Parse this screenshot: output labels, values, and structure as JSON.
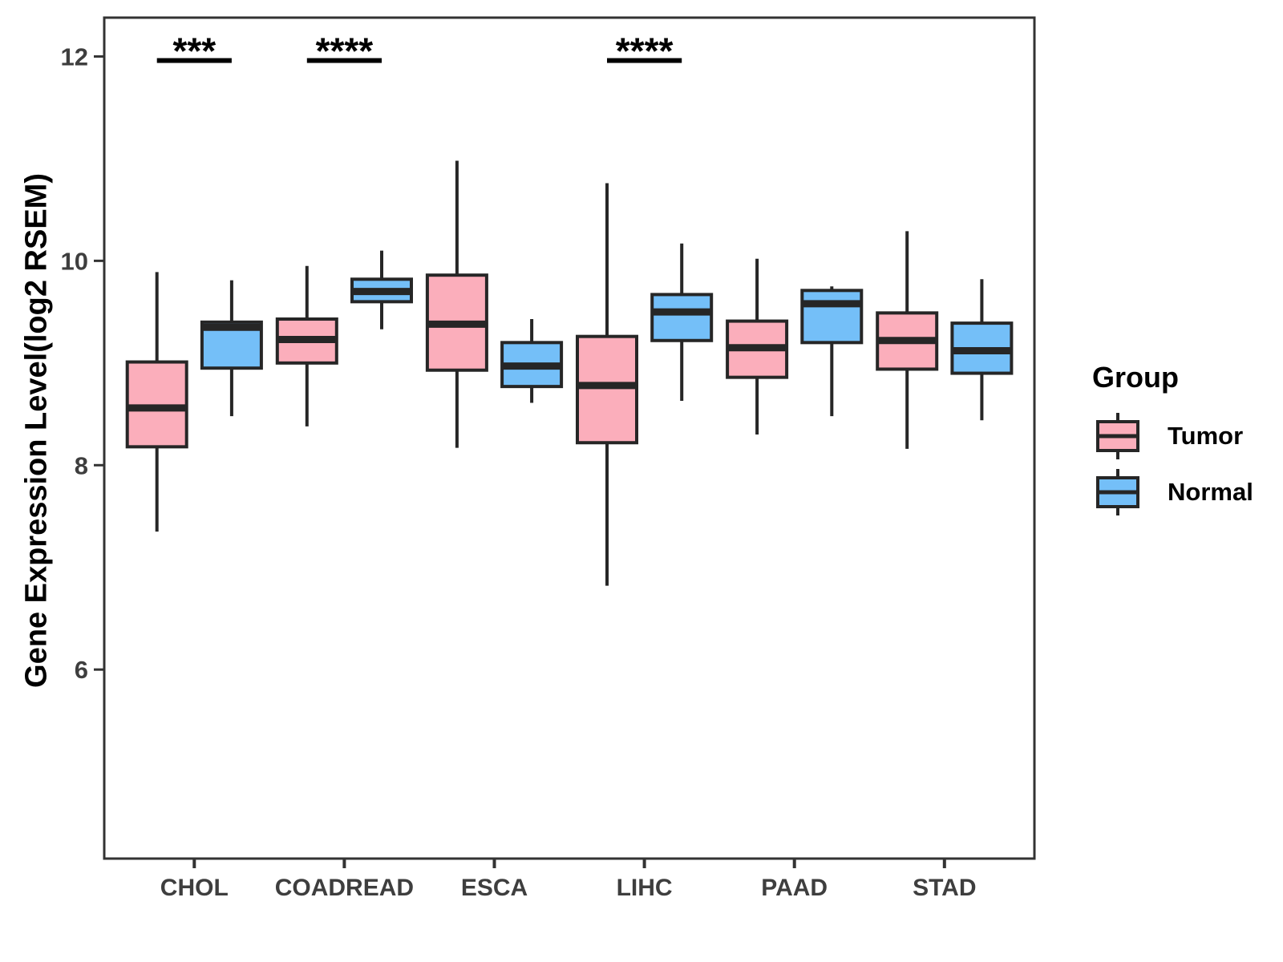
{
  "chart_data": {
    "type": "boxplot",
    "title": "",
    "xlabel": "",
    "ylabel": "Gene Expression Level(log2 RSEM)",
    "ylim": [
      4.15,
      12.38
    ],
    "yticks": [
      6,
      8,
      10,
      12
    ],
    "grid": false,
    "categories": [
      "CHOL",
      "COADREAD",
      "ESCA",
      "LIHC",
      "PAAD",
      "STAD"
    ],
    "groups": [
      {
        "name": "Tumor",
        "color": "#FBAEBB"
      },
      {
        "name": "Normal",
        "color": "#74BFF8"
      }
    ],
    "series": [
      {
        "name": "Tumor",
        "boxes": [
          {
            "category": "CHOL",
            "whisker_low": 7.35,
            "q1": 8.18,
            "median": 8.56,
            "q3": 9.01,
            "whisker_high": 9.89
          },
          {
            "category": "COADREAD",
            "whisker_low": 8.38,
            "q1": 9.0,
            "median": 9.23,
            "q3": 9.43,
            "whisker_high": 9.95
          },
          {
            "category": "ESCA",
            "whisker_low": 8.17,
            "q1": 8.93,
            "median": 9.38,
            "q3": 9.86,
            "whisker_high": 10.98
          },
          {
            "category": "LIHC",
            "whisker_low": 6.82,
            "q1": 8.22,
            "median": 8.78,
            "q3": 9.26,
            "whisker_high": 10.76
          },
          {
            "category": "PAAD",
            "whisker_low": 8.3,
            "q1": 8.86,
            "median": 9.15,
            "q3": 9.41,
            "whisker_high": 10.02
          },
          {
            "category": "STAD",
            "whisker_low": 8.16,
            "q1": 8.94,
            "median": 9.22,
            "q3": 9.49,
            "whisker_high": 10.29
          }
        ]
      },
      {
        "name": "Normal",
        "boxes": [
          {
            "category": "CHOL",
            "whisker_low": 8.48,
            "q1": 8.95,
            "median": 9.35,
            "q3": 9.4,
            "whisker_high": 9.81
          },
          {
            "category": "COADREAD",
            "whisker_low": 9.33,
            "q1": 9.6,
            "median": 9.7,
            "q3": 9.82,
            "whisker_high": 10.1
          },
          {
            "category": "ESCA",
            "whisker_low": 8.61,
            "q1": 8.77,
            "median": 8.97,
            "q3": 9.2,
            "whisker_high": 9.43
          },
          {
            "category": "LIHC",
            "whisker_low": 8.63,
            "q1": 9.22,
            "median": 9.5,
            "q3": 9.67,
            "whisker_high": 10.17
          },
          {
            "category": "PAAD",
            "whisker_low": 8.48,
            "q1": 9.2,
            "median": 9.58,
            "q3": 9.71,
            "whisker_high": 9.75
          },
          {
            "category": "STAD",
            "whisker_low": 8.44,
            "q1": 8.9,
            "median": 9.12,
            "q3": 9.39,
            "whisker_high": 9.82
          }
        ]
      }
    ],
    "annotations": [
      {
        "category": "CHOL",
        "label": "***",
        "y": 11.96
      },
      {
        "category": "COADREAD",
        "label": "****",
        "y": 11.96
      },
      {
        "category": "LIHC",
        "label": "****",
        "y": 11.96
      }
    ],
    "legend": {
      "title": "Group",
      "items": [
        {
          "label": "Tumor",
          "color": "#FBAEBB"
        },
        {
          "label": "Normal",
          "color": "#74BFF8"
        }
      ]
    },
    "colors": {
      "box_stroke": "#262626",
      "panel_border": "#333333",
      "tick_text": "#3E3E3E",
      "annotation": "#000000"
    }
  }
}
